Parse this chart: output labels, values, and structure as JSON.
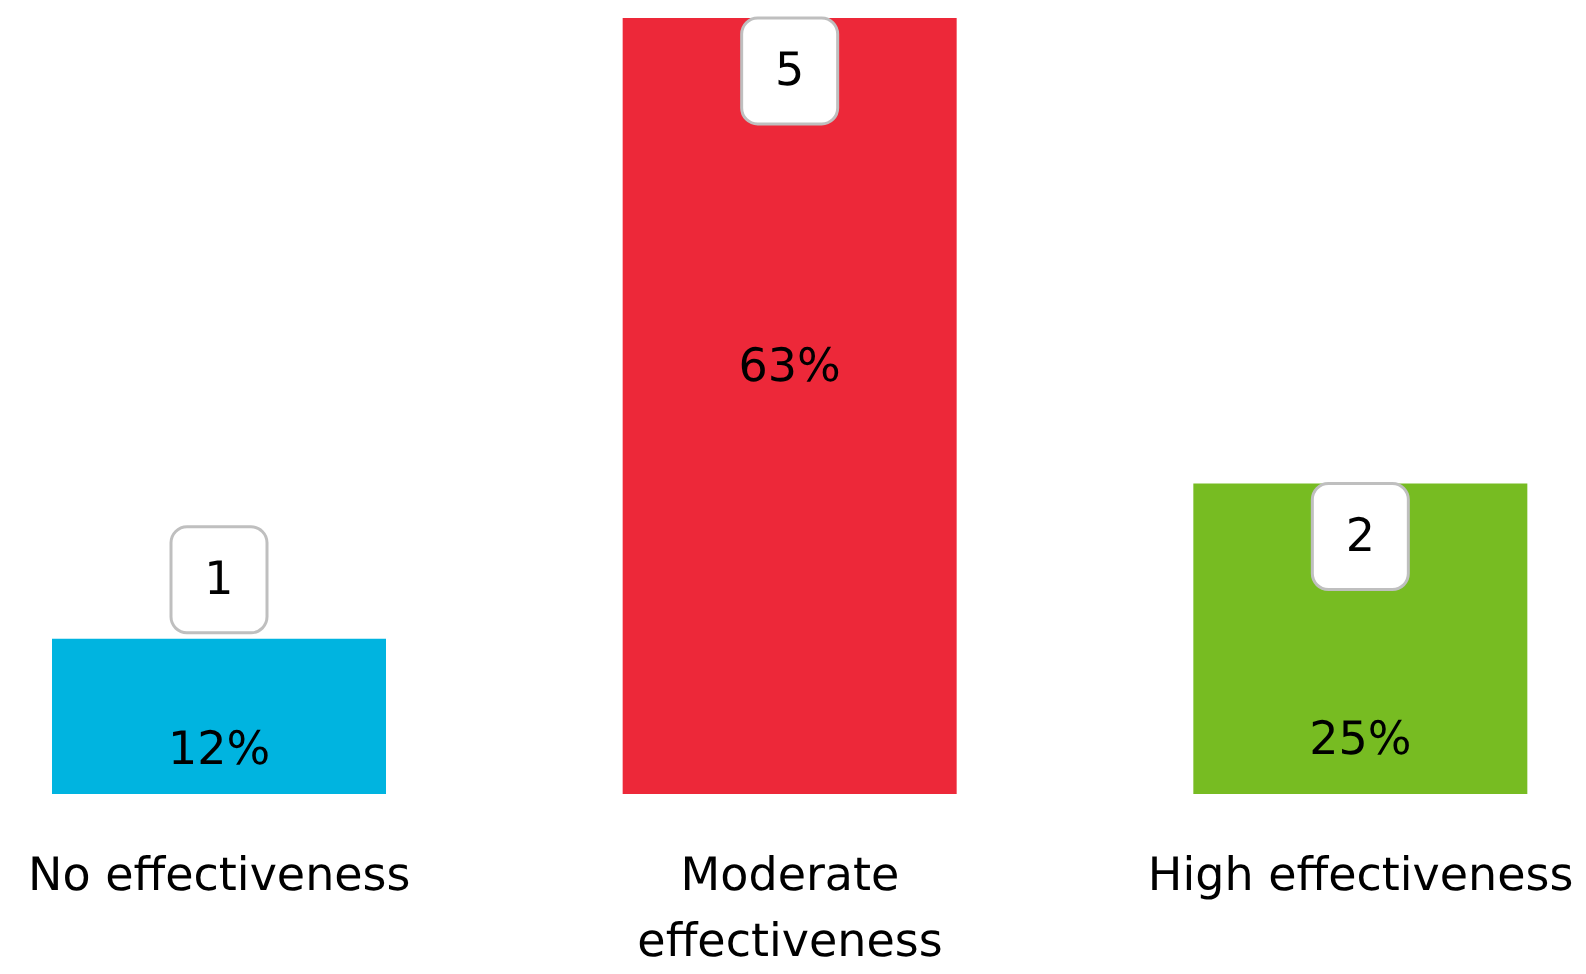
{
  "chart_data": {
    "type": "bar",
    "categories": [
      "No effectiveness",
      "Moderate effectiveness",
      "High effectiveness"
    ],
    "values": [
      1,
      5,
      2
    ],
    "colors": [
      "#00b4e0",
      "#ed2839",
      "#77bc22"
    ],
    "data_labels": true,
    "annotations": [
      "12%",
      "63%",
      "25%"
    ]
  }
}
